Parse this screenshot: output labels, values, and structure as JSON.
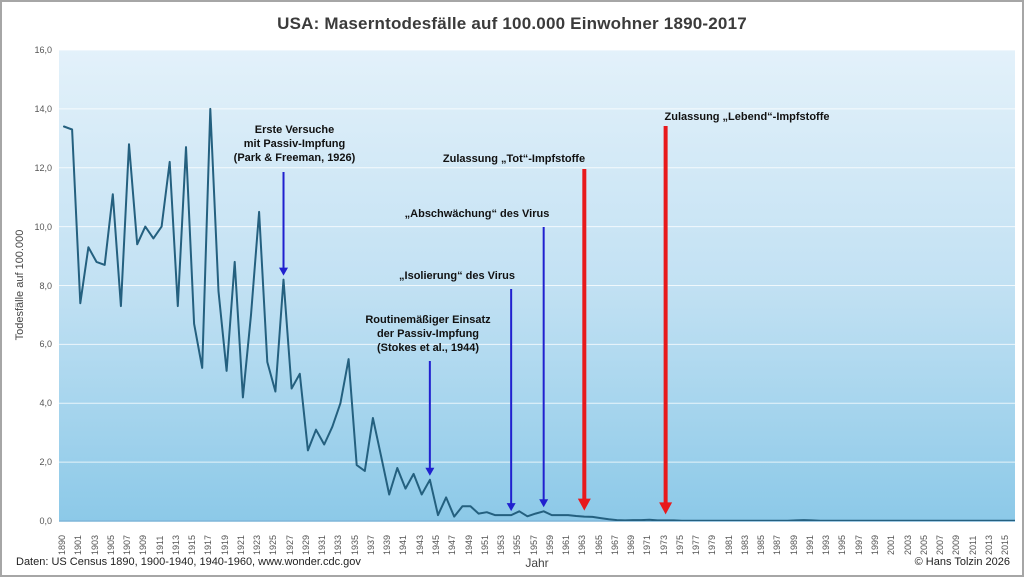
{
  "title": "USA: Maserntodesfälle auf 100.000 Einwohner 1890-2017",
  "y_axis": {
    "label": "Todesfälle auf 100.000",
    "ticks": [
      "16,0",
      "14,0",
      "12,0",
      "10,0",
      "8,0",
      "6,0",
      "4,0",
      "2,0",
      "0,0"
    ],
    "min": 0,
    "max": 16
  },
  "x_axis": {
    "label": "Jahr",
    "tick_labels": [
      "1890",
      "1901",
      "1903",
      "1905",
      "1907",
      "1909",
      "1911",
      "1913",
      "1915",
      "1917",
      "1919",
      "1921",
      "1923",
      "1925",
      "1927",
      "1929",
      "1931",
      "1933",
      "1935",
      "1937",
      "1939",
      "1941",
      "1943",
      "1945",
      "1947",
      "1949",
      "1951",
      "1953",
      "1955",
      "1957",
      "1959",
      "1961",
      "1963",
      "1965",
      "1967",
      "1969",
      "1971",
      "1973",
      "1975",
      "1977",
      "1979",
      "1981",
      "1983",
      "1985",
      "1987",
      "1989",
      "1991",
      "1993",
      "1995",
      "1997",
      "1999",
      "2001",
      "2003",
      "2005",
      "2007",
      "2009",
      "2011",
      "2013",
      "2015"
    ]
  },
  "footer": {
    "source": "Daten: US Census 1890, 1900-1940, 1940-1960, www.wonder.cdc.gov",
    "copyright": "© Hans Tolzin 2026"
  },
  "events": [
    {
      "label": "Erste Versuche\nmit Passiv-Impfung\n(Park & Freeman, 1926)",
      "year": 1926,
      "arrow": "blue"
    },
    {
      "label": "Routinemäßiger Einsatz\nder Passiv-Impfung\n(Stokes et al., 1944)",
      "year": 1944,
      "arrow": "blue"
    },
    {
      "label": "„Isolierung“ des Virus",
      "year": 1954,
      "arrow": "blue"
    },
    {
      "label": "„Abschwächung“ des Virus",
      "year": 1958,
      "arrow": "blue"
    },
    {
      "label": "Zulassung „Tot“-Impfstoffe",
      "year": 1963,
      "arrow": "red"
    },
    {
      "label": "Zulassung „Lebend“-Impfstoffe",
      "year": 1973,
      "arrow": "red"
    }
  ],
  "colors": {
    "line": "#24607f",
    "blue_arrow": "#2020cf",
    "red_arrow": "#e8191c",
    "grid": "rgba(255,255,255,0.75)",
    "plot_top": "#e3f1fa",
    "plot_mid": "#c2e1f3",
    "plot_bottom": "#8cc9e8",
    "axis_line": "#7fb6d9"
  },
  "chart_data": {
    "type": "line",
    "title": "USA: Maserntodesfälle auf 100.000 Einwohner 1890-2017",
    "xlabel": "Jahr",
    "ylabel": "Todesfälle auf 100.000",
    "ylim": [
      0,
      16
    ],
    "grid": true,
    "series_name": "Maserntodesfälle pro 100.000 Einwohner",
    "x": [
      1890,
      1900,
      1901,
      1902,
      1903,
      1904,
      1905,
      1906,
      1907,
      1908,
      1909,
      1910,
      1911,
      1912,
      1913,
      1914,
      1915,
      1916,
      1917,
      1918,
      1919,
      1920,
      1921,
      1922,
      1923,
      1924,
      1925,
      1926,
      1927,
      1928,
      1929,
      1930,
      1931,
      1932,
      1933,
      1934,
      1935,
      1936,
      1937,
      1938,
      1939,
      1940,
      1941,
      1942,
      1943,
      1944,
      1945,
      1946,
      1947,
      1948,
      1949,
      1950,
      1951,
      1952,
      1953,
      1954,
      1955,
      1956,
      1957,
      1958,
      1959,
      1960,
      1961,
      1962,
      1963,
      1964,
      1965,
      1966,
      1967,
      1968,
      1969,
      1970,
      1971,
      1972,
      1973,
      1974,
      1975,
      1976,
      1977,
      1978,
      1979,
      1980,
      1981,
      1982,
      1983,
      1984,
      1985,
      1986,
      1987,
      1988,
      1989,
      1990,
      1991,
      1992,
      1993,
      1994,
      1995,
      1996,
      1997,
      1998,
      1999,
      2000,
      2001,
      2002,
      2003,
      2004,
      2005,
      2006,
      2007,
      2008,
      2009,
      2010,
      2011,
      2012,
      2013,
      2014,
      2015,
      2016,
      2017
    ],
    "values": [
      13.4,
      13.3,
      7.4,
      9.3,
      8.8,
      8.7,
      11.1,
      7.3,
      12.8,
      9.4,
      10.0,
      9.6,
      10.0,
      12.2,
      7.3,
      12.7,
      6.7,
      5.2,
      14.0,
      7.8,
      5.1,
      8.8,
      4.2,
      7.0,
      10.5,
      5.4,
      4.4,
      8.2,
      4.5,
      5.0,
      2.4,
      3.1,
      2.6,
      3.2,
      4.0,
      5.5,
      1.9,
      1.7,
      3.5,
      2.2,
      0.9,
      1.8,
      1.1,
      1.6,
      0.9,
      1.4,
      0.2,
      0.8,
      0.15,
      0.5,
      0.5,
      0.25,
      0.3,
      0.2,
      0.2,
      0.2,
      0.33,
      0.16,
      0.25,
      0.33,
      0.2,
      0.2,
      0.2,
      0.17,
      0.15,
      0.14,
      0.1,
      0.06,
      0.03,
      0.02,
      0.03,
      0.03,
      0.04,
      0.02,
      0.02,
      0.02,
      0.01,
      0.01,
      0.01,
      0.01,
      0.01,
      0.01,
      0.01,
      0.01,
      0.01,
      0.01,
      0.01,
      0.01,
      0.01,
      0.01,
      0.02,
      0.03,
      0.02,
      0.01,
      0.01,
      0.01,
      0.01,
      0.01,
      0.01,
      0.01,
      0.01,
      0.01,
      0.01,
      0.01,
      0.01,
      0.01,
      0.01,
      0.01,
      0.01,
      0.01,
      0.01,
      0.01,
      0.01,
      0.01,
      0.01,
      0.01,
      0.01,
      0.01,
      0.01
    ]
  }
}
